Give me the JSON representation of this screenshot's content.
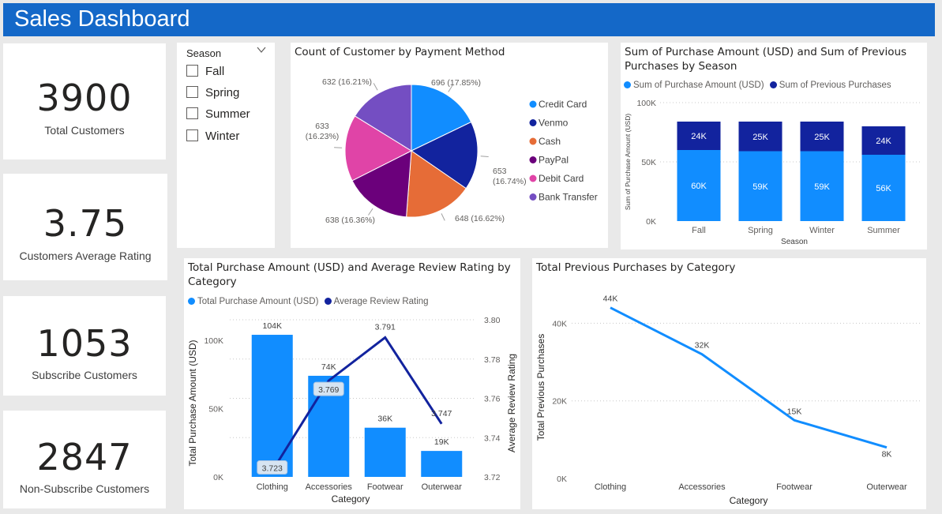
{
  "header": {
    "title": "Sales Dashboard"
  },
  "kpis": [
    {
      "value": "3900",
      "label": "Total Customers"
    },
    {
      "value": "3.75",
      "label": "Customers Average Rating"
    },
    {
      "value": "1053",
      "label": "Subscribe Customers"
    },
    {
      "value": "2847",
      "label": "Non-Subscribe Customers"
    }
  ],
  "slicer": {
    "title": "Season",
    "items": [
      "Fall",
      "Spring",
      "Summer",
      "Winter"
    ]
  },
  "colors": {
    "header": "#1468c8",
    "light_blue": "#118dff",
    "dark_blue": "#12239e",
    "orange": "#e66c37",
    "purple": "#6b007b",
    "pink": "#e044a7",
    "violet": "#744ec2"
  },
  "chart_data": [
    {
      "type": "pie",
      "title": "Count of Customer by Payment Method",
      "labels": [
        "Credit Card",
        "Venmo",
        "Cash",
        "PayPal",
        "Debit Card",
        "Bank Transfer"
      ],
      "values": [
        696,
        653,
        648,
        638,
        633,
        632
      ],
      "value_labels": [
        "696 (17.85%)",
        "653 (16.74%)",
        "648 (16.62%)",
        "638 (16.36%)",
        "633 (16.23%)",
        "632 (16.21%)"
      ],
      "colors": [
        "#118dff",
        "#12239e",
        "#e66c37",
        "#6b007b",
        "#e044a7",
        "#744ec2"
      ],
      "legend": "right"
    },
    {
      "type": "bar",
      "stacked": true,
      "title": "Sum of Purchase Amount (USD) and Sum of Previous Purchases by Season",
      "categories": [
        "Fall",
        "Spring",
        "Winter",
        "Summer"
      ],
      "series": [
        {
          "name": "Sum of Purchase Amount (USD)",
          "values": [
            60000,
            59000,
            59000,
            56000
          ],
          "labels": [
            "60K",
            "59K",
            "59K",
            "56K"
          ]
        },
        {
          "name": "Sum of Previous Purchases",
          "values": [
            24000,
            25000,
            25000,
            24000
          ],
          "labels": [
            "24K",
            "25K",
            "25K",
            "24K"
          ]
        }
      ],
      "xlabel": "Season",
      "ylabel": "Sum of Purchase Amount (USD)",
      "ylim": [
        0,
        100000
      ],
      "yticks": [
        "0K",
        "50K",
        "100K"
      ],
      "legend": "top-left"
    },
    {
      "type": "bar",
      "combo": "bar+line",
      "title": "Total Purchase Amount (USD) and Average Review Rating by Category",
      "categories": [
        "Clothing",
        "Accessories",
        "Footwear",
        "Outerwear"
      ],
      "series": [
        {
          "name": "Total Purchase Amount (USD)",
          "values": [
            104000,
            74000,
            36000,
            19000
          ],
          "labels": [
            "104K",
            "74K",
            "36K",
            "19K"
          ]
        },
        {
          "name": "Average Review Rating",
          "values": [
            3.723,
            3.769,
            3.791,
            3.747
          ],
          "labels": [
            "3.723",
            "3.769",
            "3.791",
            "3.747"
          ]
        }
      ],
      "xlabel": "Category",
      "ylabel": "Total Purchase Amount (USD)",
      "ylabel_right": "Average Review Rating",
      "ylim": [
        0,
        115000
      ],
      "yticks": [
        "0K",
        "50K",
        "100K"
      ],
      "ylim_right": [
        3.72,
        3.8
      ],
      "yticks_right": [
        "3.72",
        "3.74",
        "3.76",
        "3.78",
        "3.80"
      ],
      "legend": "top-left"
    },
    {
      "type": "line",
      "title": "Total Previous Purchases by Category",
      "categories": [
        "Clothing",
        "Accessories",
        "Footwear",
        "Outerwear"
      ],
      "values": [
        44000,
        32000,
        15000,
        8000
      ],
      "labels": [
        "44K",
        "32K",
        "15K",
        "8K"
      ],
      "xlabel": "Category",
      "ylabel": "Total Previous Purchases",
      "ylim": [
        0,
        47000
      ],
      "yticks": [
        "0K",
        "20K",
        "40K"
      ]
    }
  ]
}
